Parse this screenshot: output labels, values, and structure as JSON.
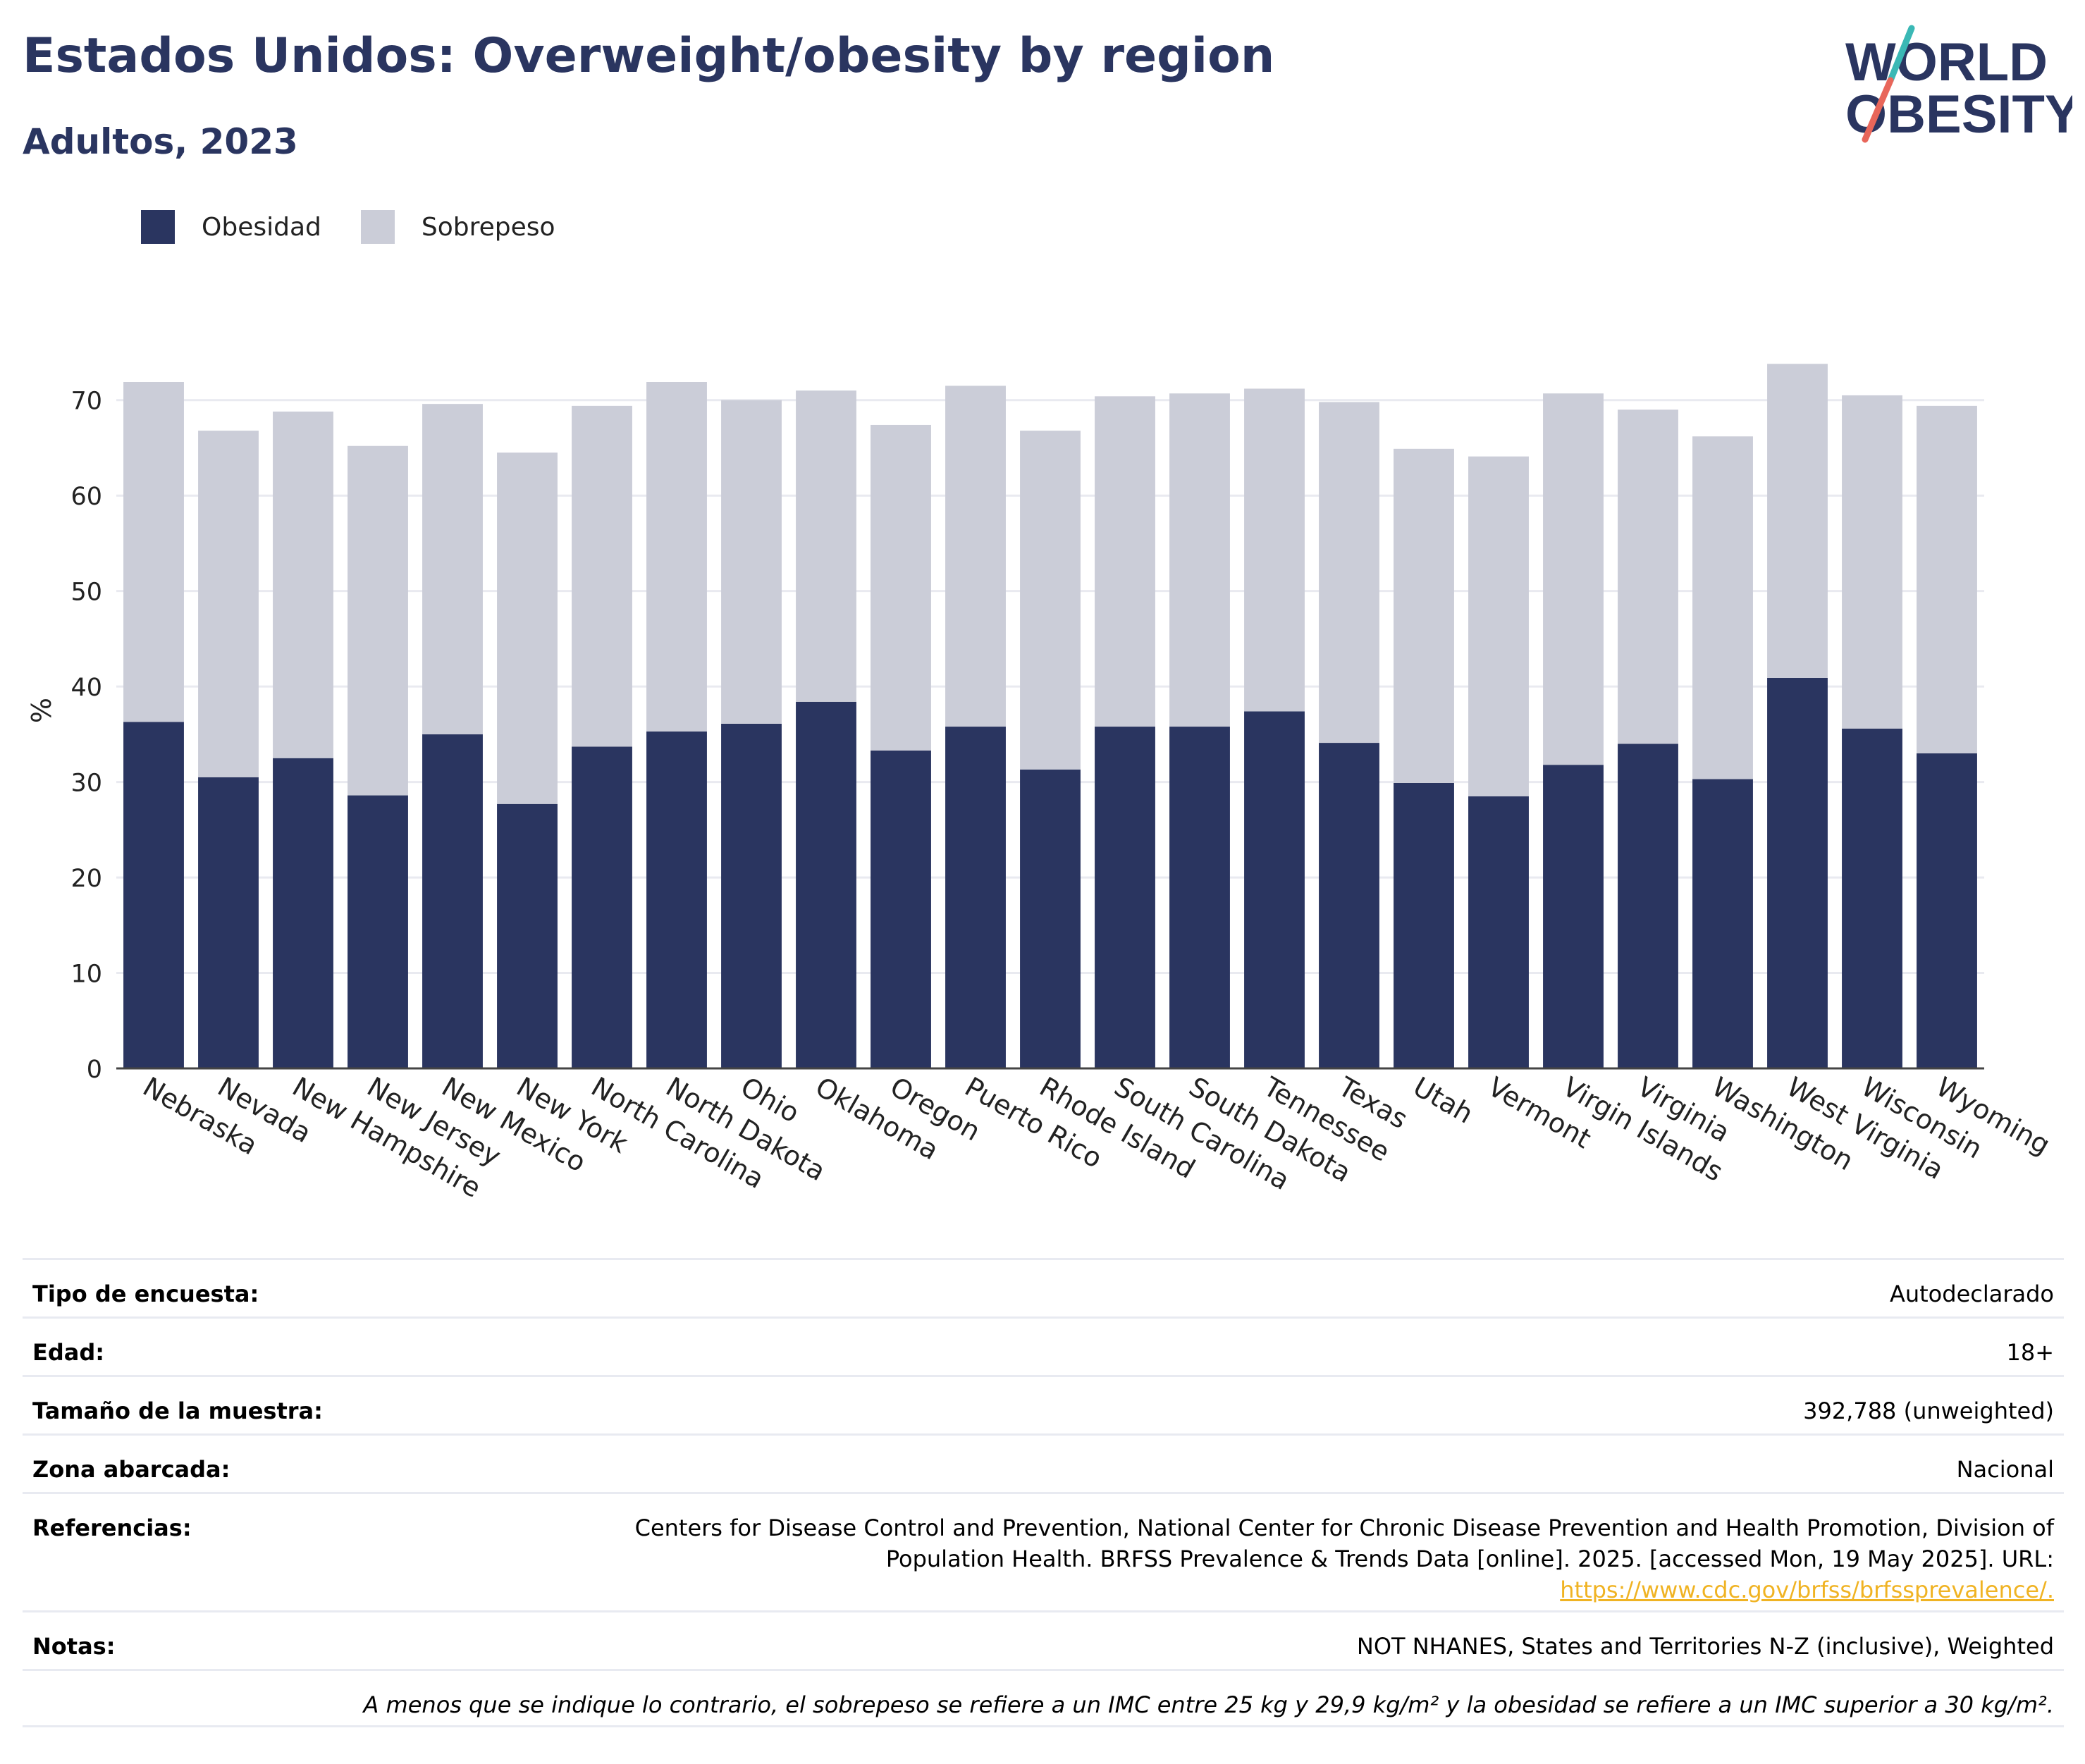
{
  "header": {
    "title": "Estados Unidos: Overweight/obesity by region",
    "subtitle": "Adultos, 2023"
  },
  "logo": {
    "line1": "WORLD",
    "line2": "OBESITY",
    "accent_teal": "#3ab8b5",
    "accent_coral": "#e8665a"
  },
  "legend": [
    {
      "label": "Obesidad",
      "color": "#2a3560"
    },
    {
      "label": "Sobrepeso",
      "color": "#cbcdd8"
    }
  ],
  "chart_data": {
    "type": "bar",
    "stacked": true,
    "ylabel": "%",
    "ylim": [
      0,
      75
    ],
    "yticks": [
      0,
      10,
      20,
      30,
      40,
      50,
      60,
      70
    ],
    "grid": true,
    "legend_position": "top-left",
    "categories": [
      "Nebraska",
      "Nevada",
      "New Hampshire",
      "New Jersey",
      "New Mexico",
      "New York",
      "North Carolina",
      "North Dakota",
      "Ohio",
      "Oklahoma",
      "Oregon",
      "Puerto Rico",
      "Rhode Island",
      "South Carolina",
      "South Dakota",
      "Tennessee",
      "Texas",
      "Utah",
      "Vermont",
      "Virgin Islands",
      "Virginia",
      "Washington",
      "West Virginia",
      "Wisconsin",
      "Wyoming"
    ],
    "series": [
      {
        "name": "Obesidad",
        "color": "#2a3560",
        "values": [
          36.3,
          30.5,
          32.5,
          28.6,
          35.0,
          27.7,
          33.7,
          35.3,
          36.1,
          38.4,
          33.3,
          35.8,
          31.3,
          35.8,
          35.8,
          37.4,
          34.1,
          29.9,
          28.5,
          31.8,
          34.0,
          30.3,
          40.9,
          35.6,
          33.0
        ]
      },
      {
        "name": "Sobrepeso",
        "color": "#cbcdd8",
        "values": [
          35.6,
          36.3,
          36.3,
          36.6,
          34.6,
          36.8,
          35.7,
          36.6,
          33.9,
          32.6,
          34.1,
          35.7,
          35.5,
          34.6,
          34.9,
          33.8,
          35.7,
          35.0,
          35.6,
          38.9,
          35.0,
          35.9,
          32.9,
          34.9,
          36.4
        ]
      }
    ]
  },
  "info": {
    "survey_type": {
      "label": "Tipo de encuesta:",
      "value": "Autodeclarado"
    },
    "age": {
      "label": "Edad:",
      "value": "18+"
    },
    "sample": {
      "label": "Tamaño de la muestra:",
      "value": "392,788 (unweighted)"
    },
    "area": {
      "label": "Zona abarcada:",
      "value": "Nacional"
    },
    "references": {
      "label": "Referencias:",
      "line1": "Centers for Disease Control and Prevention, National Center for Chronic Disease Prevention and Health Promotion, Division of",
      "line2": "Population Health. BRFSS Prevalence & Trends Data [online]. 2025. [accessed Mon, 19 May 2025]. URL:",
      "url": "https://www.cdc.gov/brfss/brfssprevalence/."
    },
    "notes": {
      "label": "Notas:",
      "value": "NOT NHANES, States and Territories N-Z (inclusive), Weighted"
    },
    "footnote": "A menos que se indique lo contrario, el sobrepeso se refiere a un IMC entre 25 kg y 29,9 kg/m² y la obesidad se refiere a un IMC superior a 30 kg/m²."
  }
}
